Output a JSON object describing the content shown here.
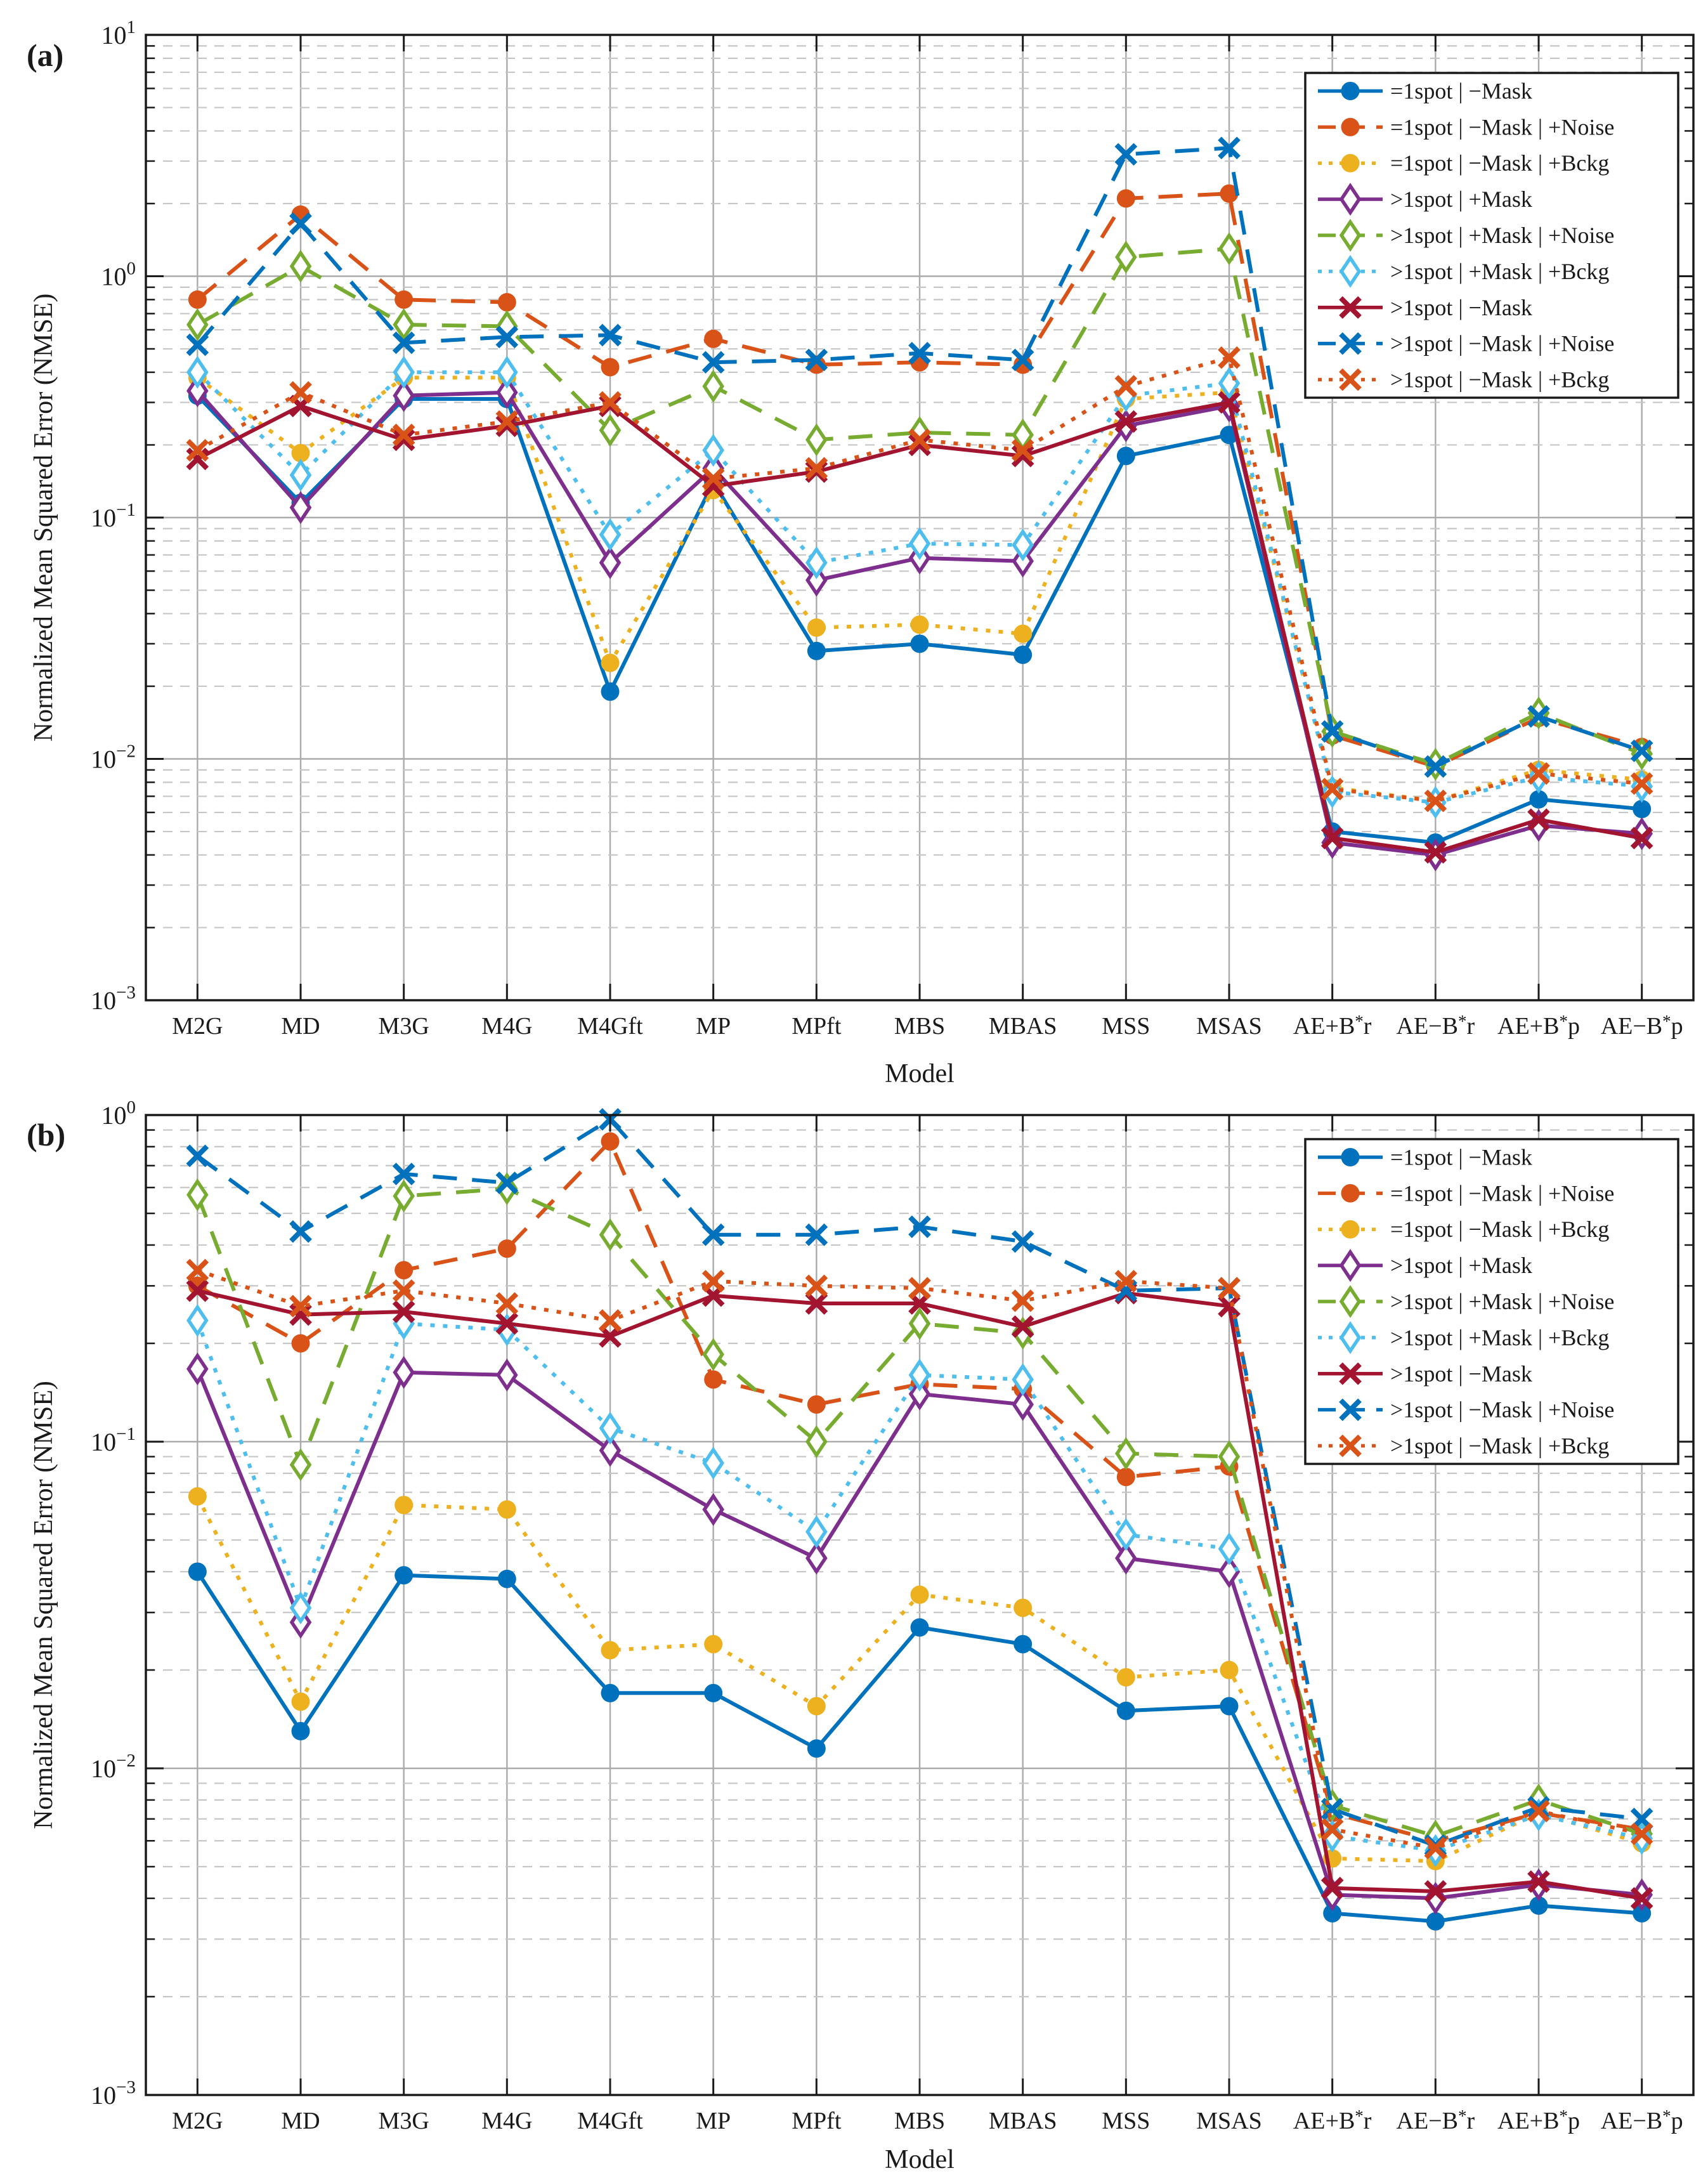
{
  "figure": {
    "panel_a_label": "(a)",
    "panel_b_label": "(b)",
    "y_axis_label": "Normalized Mean Squared Error (NMSE)",
    "x_axis_label": "Model"
  },
  "chart_data": [
    {
      "type": "line",
      "panel": "(a)",
      "xlabel": "Model",
      "ylabel": "Normalized Mean Squared Error (NMSE)",
      "y_scale": "log",
      "ylim": [
        0.001,
        10
      ],
      "y_tick_labels": [
        "10^1",
        "10^0",
        "10^-1",
        "10^-2",
        "10^-3"
      ],
      "grid": true,
      "legend_position": "top-right",
      "categories": [
        "M2G",
        "MD",
        "M3G",
        "M4G",
        "M4Gft",
        "MP",
        "MPft",
        "MBS",
        "MBAS",
        "MSS",
        "MSAS",
        "AE+B*r",
        "AE−B*r",
        "AE+B*p",
        "AE−B*p"
      ],
      "series": [
        {
          "name": "=1spot | −Mask",
          "color": "#0072BD",
          "line": "solid",
          "marker": "circle",
          "values": [
            0.32,
            0.115,
            0.31,
            0.31,
            0.019,
            0.14,
            0.028,
            0.03,
            0.027,
            0.18,
            0.22,
            0.005,
            0.0045,
            0.0068,
            0.0062
          ]
        },
        {
          "name": "=1spot | −Mask | +Noise",
          "color": "#D95319",
          "line": "dash",
          "marker": "circle",
          "values": [
            0.8,
            1.8,
            0.8,
            0.78,
            0.42,
            0.55,
            0.43,
            0.44,
            0.43,
            2.1,
            2.2,
            0.0125,
            0.0093,
            0.0148,
            0.0112
          ]
        },
        {
          "name": "=1spot | −Mask | +Bckg",
          "color": "#EDB120",
          "line": "dot",
          "marker": "circle",
          "values": [
            0.38,
            0.185,
            0.38,
            0.38,
            0.025,
            0.13,
            0.035,
            0.036,
            0.033,
            0.31,
            0.33,
            0.0076,
            0.0067,
            0.009,
            0.0082
          ]
        },
        {
          "name": ">1spot | +Mask",
          "color": "#7E2F8E",
          "line": "solid",
          "marker": "diamond",
          "values": [
            0.335,
            0.11,
            0.32,
            0.33,
            0.065,
            0.16,
            0.055,
            0.068,
            0.066,
            0.24,
            0.29,
            0.0045,
            0.004,
            0.0053,
            0.0049
          ]
        },
        {
          "name": ">1spot | +Mask | +Noise",
          "color": "#77AC30",
          "line": "dash",
          "marker": "diamond",
          "values": [
            0.63,
            1.1,
            0.63,
            0.62,
            0.23,
            0.35,
            0.21,
            0.225,
            0.22,
            1.2,
            1.3,
            0.013,
            0.0095,
            0.0155,
            0.0105
          ]
        },
        {
          "name": ">1spot | +Mask | +Bckg",
          "color": "#4DBEEE",
          "line": "dot",
          "marker": "diamond",
          "values": [
            0.4,
            0.15,
            0.4,
            0.4,
            0.085,
            0.19,
            0.065,
            0.078,
            0.077,
            0.32,
            0.36,
            0.0073,
            0.0066,
            0.0084,
            0.0077
          ]
        },
        {
          "name": ">1spot | −Mask",
          "color": "#A2142F",
          "line": "solid",
          "marker": "x",
          "values": [
            0.175,
            0.29,
            0.21,
            0.24,
            0.29,
            0.135,
            0.155,
            0.2,
            0.18,
            0.25,
            0.3,
            0.0047,
            0.0041,
            0.0056,
            0.0047
          ]
        },
        {
          "name": ">1spot | −Mask | +Noise",
          "color": "#0072BD",
          "line": "dash",
          "marker": "x",
          "values": [
            0.52,
            1.65,
            0.53,
            0.56,
            0.57,
            0.44,
            0.45,
            0.48,
            0.45,
            3.2,
            3.4,
            0.013,
            0.0093,
            0.015,
            0.0108
          ]
        },
        {
          "name": ">1spot | −Mask | +Bckg",
          "color": "#D95319",
          "line": "dot",
          "marker": "x",
          "values": [
            0.19,
            0.33,
            0.22,
            0.25,
            0.3,
            0.145,
            0.16,
            0.21,
            0.19,
            0.35,
            0.46,
            0.0075,
            0.0067,
            0.0087,
            0.0079
          ]
        }
      ]
    },
    {
      "type": "line",
      "panel": "(b)",
      "xlabel": "Model",
      "ylabel": "Normalized Mean Squared Error (NMSE)",
      "y_scale": "log",
      "ylim": [
        0.001,
        1
      ],
      "y_tick_labels": [
        "10^0",
        "10^-1",
        "10^-2",
        "10^-3"
      ],
      "grid": true,
      "legend_position": "top-right",
      "categories": [
        "M2G",
        "MD",
        "M3G",
        "M4G",
        "M4Gft",
        "MP",
        "MPft",
        "MBS",
        "MBAS",
        "MSS",
        "MSAS",
        "AE+B*r",
        "AE−B*r",
        "AE+B*p",
        "AE−B*p"
      ],
      "series": [
        {
          "name": "=1spot | −Mask",
          "color": "#0072BD",
          "line": "solid",
          "marker": "circle",
          "values": [
            0.04,
            0.013,
            0.039,
            0.038,
            0.017,
            0.017,
            0.0115,
            0.027,
            0.024,
            0.015,
            0.0155,
            0.0036,
            0.0034,
            0.0038,
            0.0036
          ]
        },
        {
          "name": "=1spot | −Mask | +Noise",
          "color": "#D95319",
          "line": "dash",
          "marker": "circle",
          "values": [
            0.3,
            0.2,
            0.335,
            0.39,
            0.83,
            0.155,
            0.13,
            0.15,
            0.145,
            0.078,
            0.084,
            0.0073,
            0.006,
            0.0073,
            0.0065
          ]
        },
        {
          "name": "=1spot | −Mask | +Bckg",
          "color": "#EDB120",
          "line": "dot",
          "marker": "circle",
          "values": [
            0.068,
            0.016,
            0.064,
            0.062,
            0.023,
            0.024,
            0.0155,
            0.034,
            0.031,
            0.019,
            0.02,
            0.0053,
            0.0052,
            0.0073,
            0.0059
          ]
        },
        {
          "name": ">1spot | +Mask",
          "color": "#7E2F8E",
          "line": "solid",
          "marker": "diamond",
          "values": [
            0.167,
            0.028,
            0.163,
            0.16,
            0.094,
            0.062,
            0.044,
            0.14,
            0.13,
            0.044,
            0.04,
            0.0041,
            0.004,
            0.0044,
            0.0041
          ]
        },
        {
          "name": ">1spot | +Mask | +Noise",
          "color": "#77AC30",
          "line": "dash",
          "marker": "diamond",
          "values": [
            0.57,
            0.085,
            0.565,
            0.595,
            0.43,
            0.185,
            0.1,
            0.23,
            0.215,
            0.092,
            0.09,
            0.0077,
            0.0062,
            0.008,
            0.0063
          ]
        },
        {
          "name": ">1spot | +Mask | +Bckg",
          "color": "#4DBEEE",
          "line": "dot",
          "marker": "diamond",
          "values": [
            0.235,
            0.031,
            0.23,
            0.22,
            0.11,
            0.086,
            0.053,
            0.16,
            0.155,
            0.052,
            0.047,
            0.0062,
            0.0056,
            0.0072,
            0.0061
          ]
        },
        {
          "name": ">1spot | −Mask",
          "color": "#A2142F",
          "line": "solid",
          "marker": "x",
          "values": [
            0.29,
            0.245,
            0.25,
            0.23,
            0.21,
            0.28,
            0.265,
            0.265,
            0.225,
            0.285,
            0.26,
            0.0043,
            0.0042,
            0.0045,
            0.004
          ]
        },
        {
          "name": ">1spot | −Mask | +Noise",
          "color": "#0072BD",
          "line": "dash",
          "marker": "x",
          "values": [
            0.75,
            0.44,
            0.66,
            0.62,
            0.97,
            0.43,
            0.43,
            0.455,
            0.41,
            0.29,
            0.295,
            0.0075,
            0.0058,
            0.0076,
            0.007
          ]
        },
        {
          "name": ">1spot | −Mask | +Bckg",
          "color": "#D95319",
          "line": "dot",
          "marker": "x",
          "values": [
            0.335,
            0.26,
            0.29,
            0.265,
            0.235,
            0.31,
            0.3,
            0.295,
            0.27,
            0.31,
            0.295,
            0.0065,
            0.0057,
            0.0074,
            0.0063
          ]
        }
      ]
    }
  ]
}
